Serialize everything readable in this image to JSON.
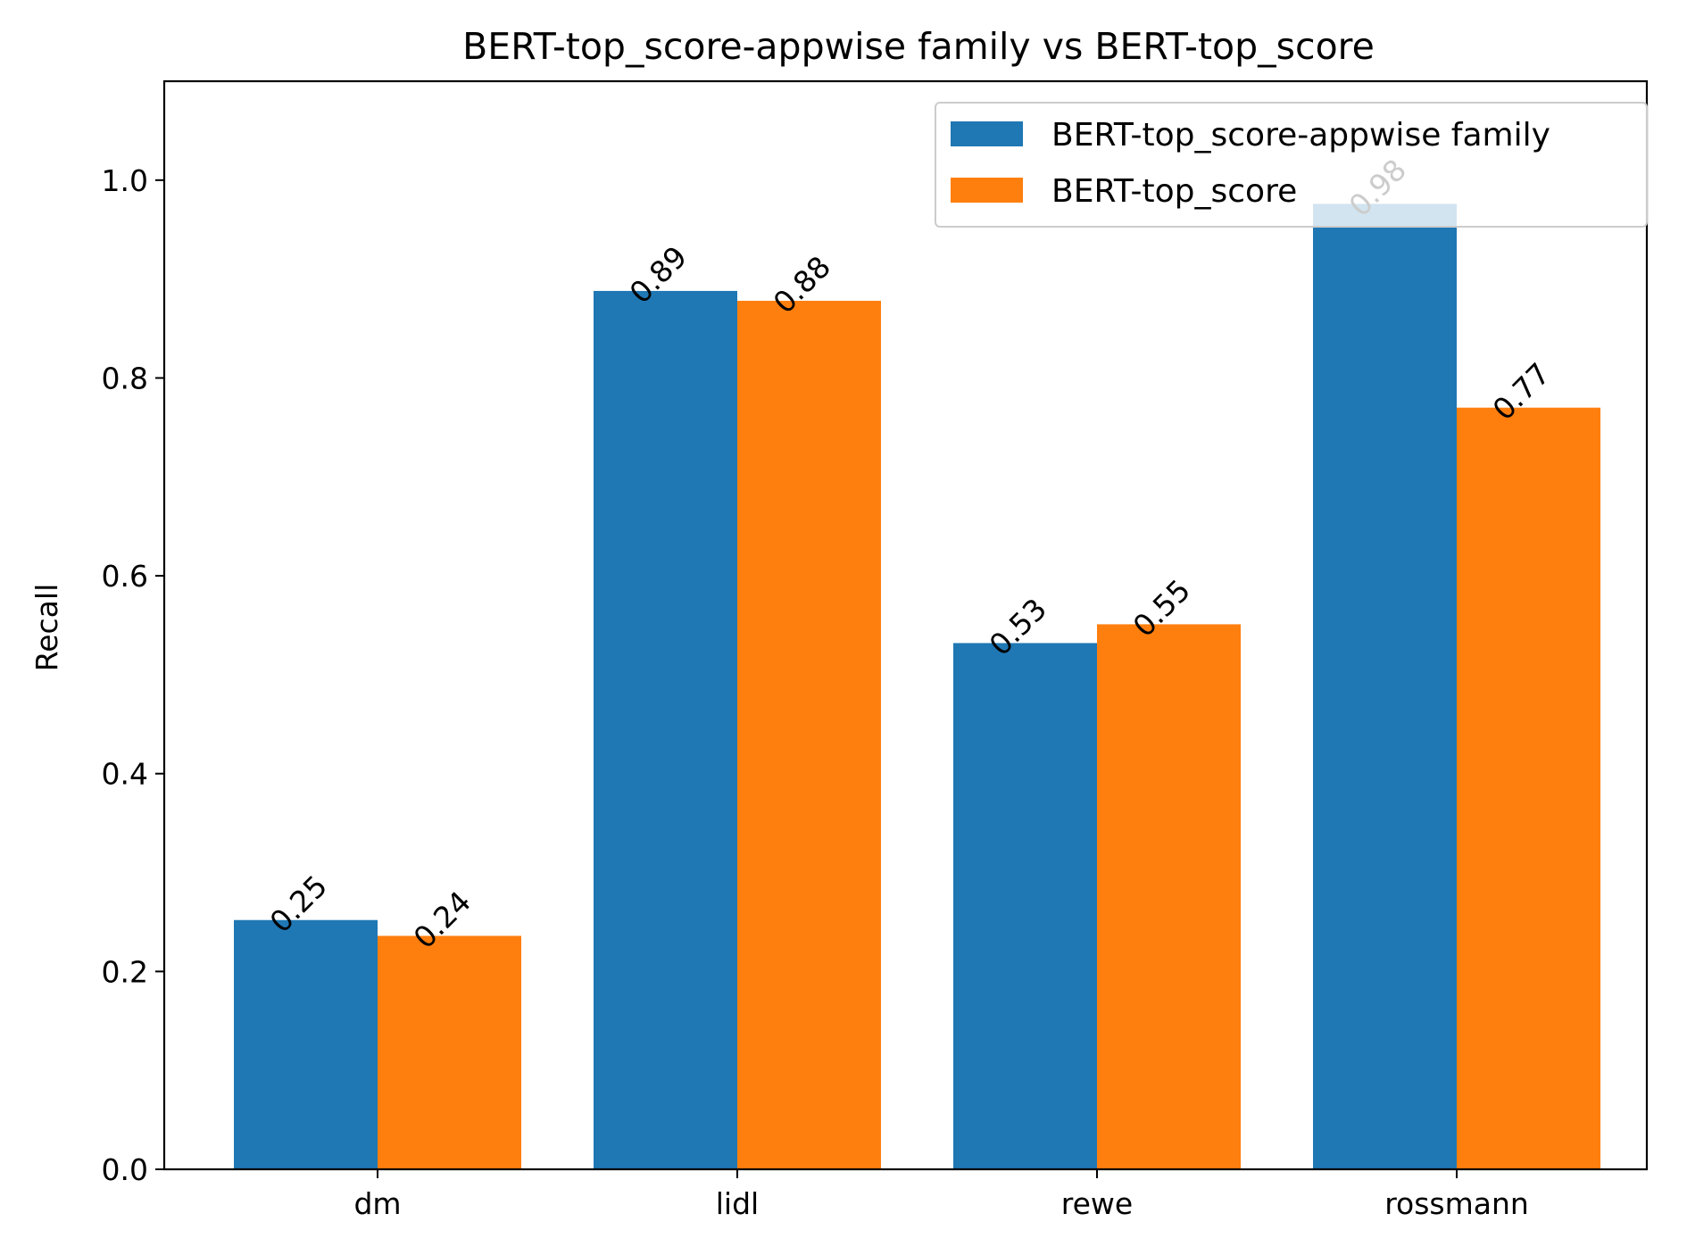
{
  "chart_data": {
    "type": "bar",
    "title": "BERT-top_score-appwise family vs BERT-top_score",
    "xlabel": "",
    "ylabel": "Recall",
    "categories": [
      "dm",
      "lidl",
      "rewe",
      "rossmann"
    ],
    "series": [
      {
        "name": "BERT-top_score-appwise family",
        "values": [
          0.252,
          0.888,
          0.532,
          0.976
        ],
        "labels": [
          "0.25",
          "0.89",
          "0.53",
          "0.98"
        ],
        "color": "#1f77b4"
      },
      {
        "name": "BERT-top_score",
        "values": [
          0.236,
          0.878,
          0.551,
          0.77
        ],
        "labels": [
          "0.24",
          "0.88",
          "0.55",
          "0.77"
        ],
        "color": "#ff7f0e"
      }
    ],
    "ylim": [
      0,
      1.1
    ],
    "yticks": [
      "0.0",
      "0.2",
      "0.4",
      "0.6",
      "0.8",
      "1.0"
    ],
    "grid": false,
    "legend_position": "top-right"
  }
}
